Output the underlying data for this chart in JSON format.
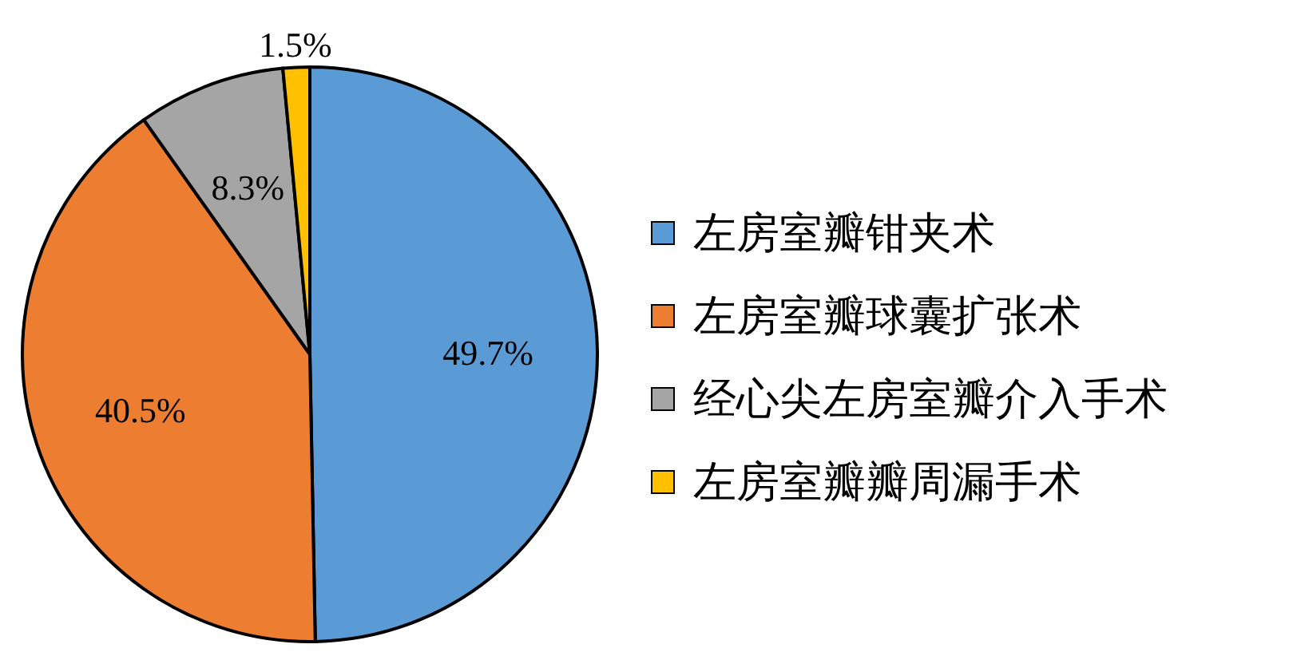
{
  "chart_data": {
    "type": "pie",
    "categories": [
      "左房室瓣钳夹术",
      "左房室瓣球囊扩张术",
      "经心尖左房室瓣介入手术",
      "左房室瓣瓣周漏手术"
    ],
    "values": [
      49.7,
      40.5,
      8.3,
      1.5
    ],
    "colors": [
      "#5b9bd5",
      "#ed7d31",
      "#a5a5a5",
      "#ffc000"
    ],
    "value_labels": [
      "49.7%",
      "40.5%",
      "8.3%",
      "1.5%"
    ],
    "legend": "right"
  }
}
